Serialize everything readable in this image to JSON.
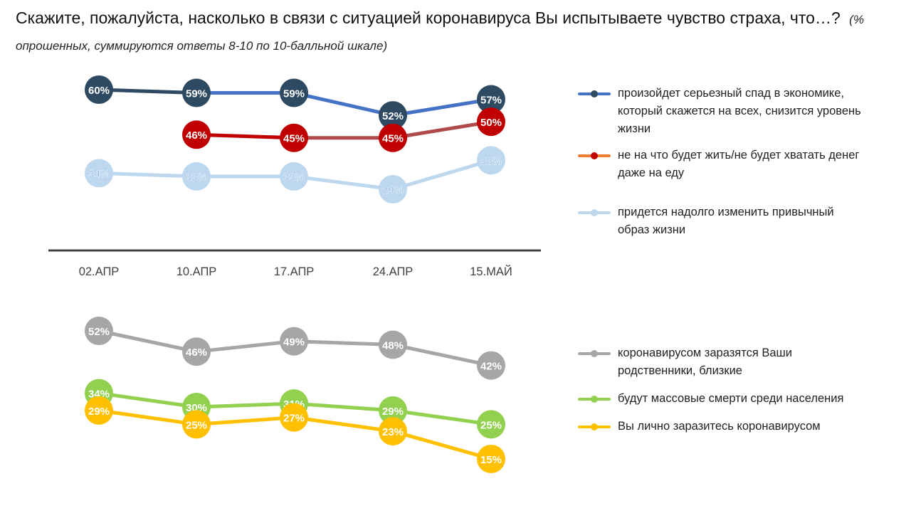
{
  "title": "Скажите, пожалуйста, насколько в связи с ситуацией коронавируса Вы испытываете чувство страха, что…?",
  "subtitle": "(% опрошенных, суммируются ответы 8-10 по 10-балльной шкале)",
  "chart_data": [
    {
      "type": "line",
      "categories": [
        "02.АПР",
        "10.АПР",
        "17.АПР",
        "24.АПР",
        "15.МАЙ"
      ],
      "series": [
        {
          "name": "произойдет серьезный спад в экономике, который скажется на всех, снизится уровень жизни",
          "values": [
            60,
            59,
            59,
            52,
            57
          ],
          "labels": [
            "60%",
            "59%",
            "59%",
            "52%",
            "57%"
          ],
          "line_color": "#4472C4",
          "marker_color": "#2E4A62"
        },
        {
          "name": "не на что будет жить/не будет хватать денег даже на еду",
          "values": [
            null,
            46,
            45,
            45,
            50
          ],
          "labels": [
            "",
            "46%",
            "45%",
            "45%",
            "50%"
          ],
          "line_color": "#B04A4A",
          "marker_color": "#C00000"
        },
        {
          "name": "придется надолго изменить привычный образ жизни",
          "values": [
            34,
            33,
            33,
            29,
            38
          ],
          "labels": [
            "34%",
            "33%",
            "33%",
            "29%",
            "38%"
          ],
          "line_color": "#BDD7EE",
          "marker_color": "#BDD7EE"
        }
      ],
      "legend_position": "right"
    },
    {
      "type": "line",
      "categories": [
        "02.АПР",
        "10.АПР",
        "17.АПР",
        "24.АПР",
        "15.МАЙ"
      ],
      "series": [
        {
          "name": "коронавирусом заразятся Ваши родственники, близкие",
          "values": [
            52,
            46,
            49,
            48,
            42
          ],
          "labels": [
            "52%",
            "46%",
            "49%",
            "48%",
            "42%"
          ],
          "line_color": "#A6A6A6",
          "marker_color": "#A6A6A6"
        },
        {
          "name": "будут массовые смерти среди населения",
          "values": [
            34,
            30,
            31,
            29,
            25
          ],
          "labels": [
            "34%",
            "30%",
            "31%",
            "29%",
            "25%"
          ],
          "line_color": "#92D050",
          "marker_color": "#92D050"
        },
        {
          "name": "Вы лично заразитесь коронавирусом",
          "values": [
            29,
            25,
            27,
            23,
            15
          ],
          "labels": [
            "29%",
            "25%",
            "27%",
            "23%",
            "15%"
          ],
          "line_color": "#FFC000",
          "marker_color": "#FFC000"
        }
      ],
      "legend_position": "right"
    }
  ],
  "legend_top": [
    {
      "label": "произойдет серьезный спад в экономике, который скажется на всех, снизится уровень жизни",
      "color": "#4472C4",
      "dot": "#2E4A62"
    },
    {
      "label": "не на что будет жить/не будет хватать денег даже на еду",
      "color": "#ED7D31",
      "dot": "#C00000"
    },
    {
      "label": " придется надолго изменить привычный образ жизни",
      "color": "#BDD7EE",
      "dot": "#BDD7EE"
    }
  ],
  "legend_bottom": [
    {
      "label": "коронавирусом заразятся Ваши родственники, близкие",
      "color": "#A6A6A6",
      "dot": "#A6A6A6"
    },
    {
      "label": "будут массовые смерти среди населения",
      "color": "#92D050",
      "dot": "#92D050"
    },
    {
      "label": "Вы лично заразитесь коронавирусом",
      "color": "#FFC000",
      "dot": "#FFC000"
    }
  ]
}
